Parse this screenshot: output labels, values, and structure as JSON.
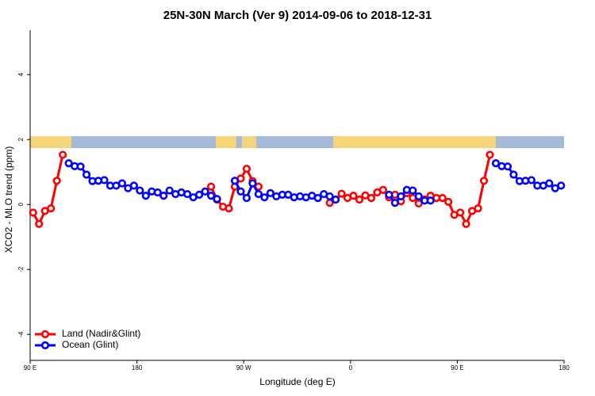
{
  "chart_data": {
    "type": "line",
    "title": "25N-30N March (Ver 9)   2014-09-06 to 2018-12-31",
    "x_label": "Longitude (deg E)",
    "y_label": "XCO2 - MLO trend (ppm)",
    "x": [
      92.5,
      97.5,
      102.5,
      107.5,
      112.5,
      117.5,
      122.5,
      127.5,
      132.5,
      137.5,
      142.5,
      147.5,
      152.5,
      157.5,
      162.5,
      167.5,
      172.5,
      177.5,
      182.5,
      187.5,
      192.5,
      197.5,
      202.5,
      207.5,
      212.5,
      217.5,
      222.5,
      227.5,
      232.5,
      237.5,
      242.5,
      247.5,
      252.5,
      257.5,
      262.5,
      267.5,
      272.5,
      277.5,
      282.5,
      287.5,
      292.5,
      297.5,
      302.5,
      307.5,
      312.5,
      317.5,
      322.5,
      327.5,
      332.5,
      337.5,
      342.5,
      347.5,
      352.5,
      357.5,
      362.5,
      367.5,
      372.5,
      377.5,
      382.5,
      387.5,
      392.5,
      397.5,
      402.5,
      407.5,
      412.5,
      417.5,
      422.5,
      427.5,
      432.5,
      437.5,
      442.5,
      447.5,
      452.5,
      457.5,
      462.5,
      467.5,
      472.5,
      477.5,
      482.5,
      487.5,
      492.5,
      497.5,
      502.5,
      507.5,
      512.5,
      517.5,
      522.5,
      527.5,
      532.5,
      537.5
    ],
    "xlim": [
      90,
      540
    ],
    "xticks": [
      {
        "value": 90,
        "label": "90 E"
      },
      180,
      {
        "value": 270,
        "label": "90 W"
      },
      {
        "value": 360,
        "label": "0"
      },
      {
        "value": 450,
        "label": "90 E"
      },
      {
        "value": 540,
        "label": "180"
      }
    ],
    "ylim": [
      -4.8,
      5.37
    ],
    "yticks": [
      -4,
      -2,
      0,
      2,
      4
    ],
    "legend": "bottom-left",
    "series": [
      {
        "name": "Land (Nadir&Glint)",
        "color": "#ff0000",
        "values": [
          -0.25,
          -0.6,
          -0.2,
          -0.12,
          0.73,
          1.53,
          null,
          null,
          null,
          null,
          null,
          null,
          null,
          null,
          null,
          null,
          null,
          null,
          null,
          null,
          null,
          null,
          null,
          null,
          null,
          null,
          null,
          null,
          null,
          null,
          0.55,
          0.15,
          -0.07,
          -0.12,
          0.55,
          0.8,
          1.1,
          0.72,
          0.55,
          null,
          null,
          null,
          null,
          null,
          null,
          null,
          null,
          null,
          null,
          null,
          0.05,
          0.15,
          0.33,
          0.2,
          0.27,
          0.15,
          0.28,
          0.2,
          0.37,
          0.45,
          0.22,
          0.3,
          0.1,
          0.35,
          0.2,
          0.03,
          0.15,
          0.27,
          0.2,
          0.2,
          0.08,
          -0.32,
          -0.25,
          -0.6,
          -0.2,
          -0.12,
          0.73,
          1.53,
          null,
          null,
          null,
          null,
          null,
          null,
          null,
          null,
          null,
          null,
          null,
          null
        ]
      },
      {
        "name": "Ocean (Glint)",
        "color": "#0000ff",
        "values": [
          null,
          null,
          null,
          null,
          null,
          null,
          1.27,
          1.18,
          1.17,
          0.92,
          0.72,
          0.73,
          0.75,
          0.58,
          0.58,
          0.65,
          0.5,
          0.58,
          0.43,
          0.27,
          0.4,
          0.37,
          0.27,
          0.43,
          0.32,
          0.37,
          0.32,
          0.22,
          0.3,
          0.4,
          0.27,
          0.17,
          null,
          null,
          0.73,
          0.4,
          0.2,
          0.65,
          0.32,
          0.22,
          0.35,
          0.25,
          0.3,
          0.3,
          0.22,
          0.25,
          0.22,
          0.27,
          0.2,
          0.32,
          0.25,
          0.15,
          null,
          null,
          null,
          null,
          null,
          null,
          null,
          null,
          0.3,
          0.05,
          0.25,
          0.45,
          0.43,
          0.25,
          0.12,
          0.12,
          null,
          null,
          null,
          null,
          null,
          null,
          null,
          null,
          null,
          null,
          1.27,
          1.18,
          1.17,
          0.92,
          0.72,
          0.73,
          0.75,
          0.58,
          0.58,
          0.65,
          0.5,
          0.58
        ]
      }
    ]
  }
}
